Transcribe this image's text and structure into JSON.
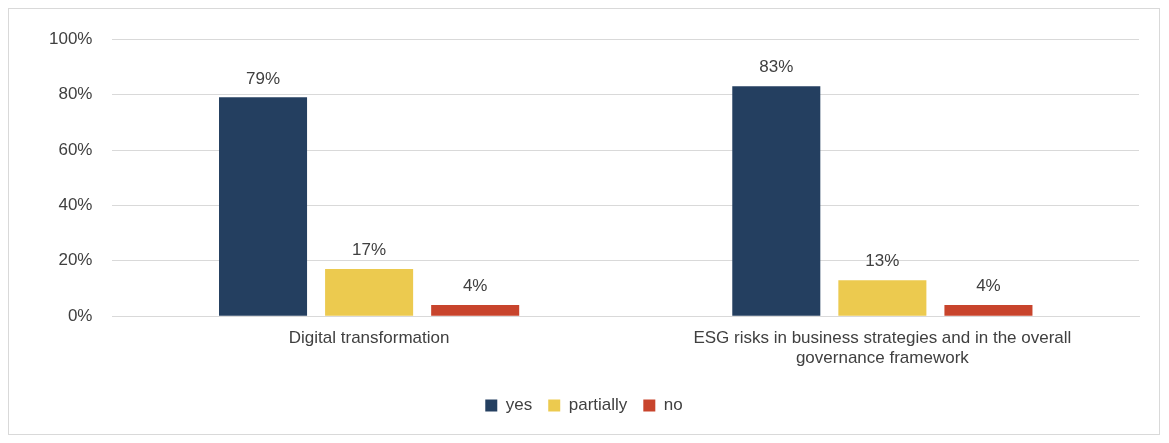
{
  "chart_data": {
    "type": "bar",
    "categories": [
      "Digital transformation",
      "ESG risks in business strategies and in the overall governance framework"
    ],
    "series": [
      {
        "name": "yes",
        "color": "#243f60",
        "values": [
          79,
          83
        ]
      },
      {
        "name": "partially",
        "color": "#ecca4f",
        "values": [
          17,
          13
        ]
      },
      {
        "name": "no",
        "color": "#c8442c",
        "values": [
          4,
          4
        ]
      }
    ],
    "ylim": [
      0,
      100
    ],
    "yticks": [
      {
        "value": 0,
        "label": "0%"
      },
      {
        "value": 20,
        "label": "20%"
      },
      {
        "value": 40,
        "label": "40%"
      },
      {
        "value": 60,
        "label": "60%"
      },
      {
        "value": 80,
        "label": "80%"
      },
      {
        "value": 100,
        "label": "100%"
      }
    ],
    "value_labels": [
      [
        "79%",
        "83%"
      ],
      [
        "17%",
        "13%"
      ],
      [
        "4%",
        "4%"
      ]
    ],
    "grid": "y",
    "legend": "bottom"
  }
}
